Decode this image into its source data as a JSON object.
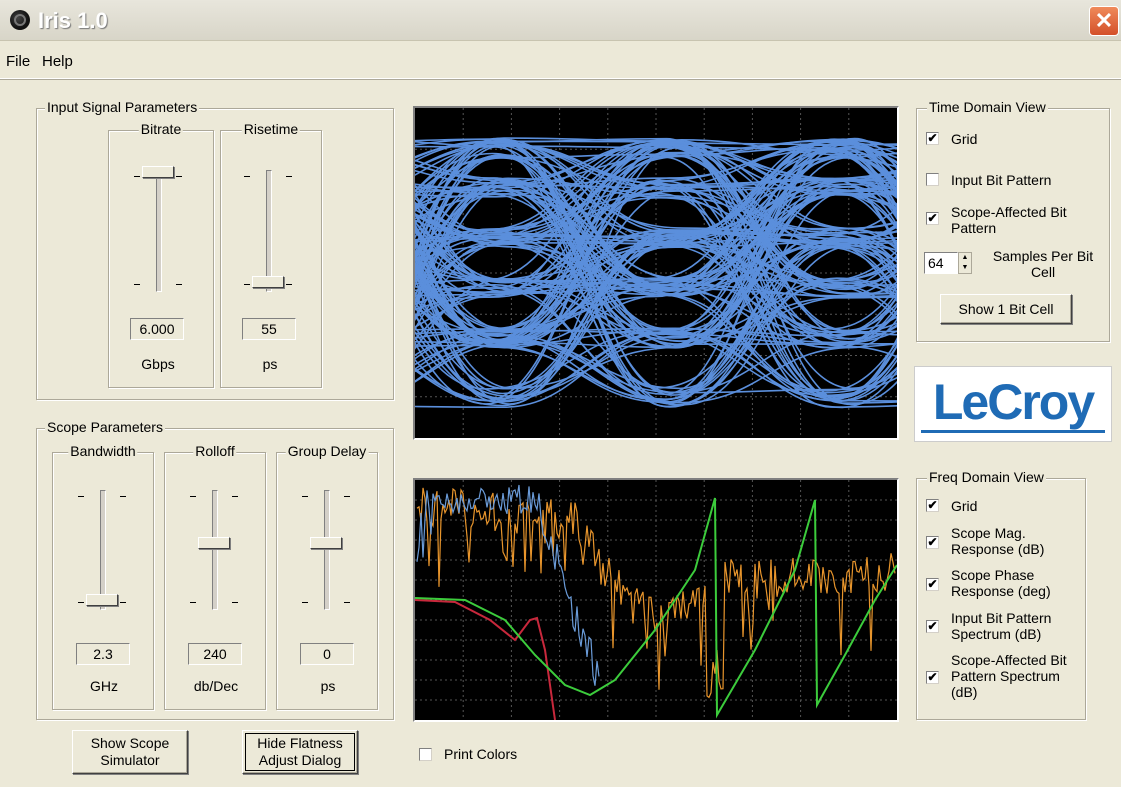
{
  "window": {
    "title": "Iris 1.0",
    "close_glyph": "✕"
  },
  "menu": [
    "File",
    "Help"
  ],
  "input_signal": {
    "title": "Input Signal Parameters",
    "bitrate": {
      "label": "Bitrate",
      "value": "6.000",
      "unit": "Gbps",
      "level": 0.98
    },
    "risetime": {
      "label": "Risetime",
      "value": "55",
      "unit": "ps",
      "level": 0.07
    }
  },
  "scope_params": {
    "title": "Scope Parameters",
    "bandwidth": {
      "label": "Bandwidth",
      "value": "2.3",
      "unit": "GHz",
      "level": 0.07
    },
    "rolloff": {
      "label": "Rolloff",
      "value": "240",
      "unit": "db/Dec",
      "level": 0.55
    },
    "group_delay": {
      "label": "Group Delay",
      "value": "0",
      "unit": "ps",
      "level": 0.55
    }
  },
  "buttons": {
    "show_scope_simulator": "Show Scope Simulator",
    "hide_flatness": "Hide Flatness Adjust Dialog",
    "show_1_bit_cell": "Show 1 Bit Cell"
  },
  "print_colors": {
    "label": "Print Colors",
    "checked": false
  },
  "time_domain": {
    "title": "Time Domain View",
    "grid": {
      "label": "Grid",
      "checked": true
    },
    "input_bit_pattern": {
      "label": "Input Bit Pattern",
      "checked": false
    },
    "scope_affected": {
      "label": "Scope-Affected Bit Pattern",
      "checked": true
    },
    "samples": {
      "value": "64",
      "label": "Samples Per Bit Cell"
    }
  },
  "freq_domain": {
    "title": "Freq Domain View",
    "grid": {
      "label": "Grid",
      "checked": true
    },
    "scope_mag": {
      "label": "Scope Mag. Response (dB)",
      "checked": true
    },
    "scope_phase": {
      "label": "Scope Phase Response (deg)",
      "checked": true
    },
    "input_spectrum": {
      "label": "Input Bit Pattern Spectrum (dB)",
      "checked": true
    },
    "scope_affected_spectrum": {
      "label": "Scope-Affected Bit Pattern Spectrum (dB)",
      "checked": true
    }
  },
  "logo": {
    "text": "LeCroy"
  },
  "colors": {
    "eye": "#5b8fdc",
    "blue_trace": "#6a9bd8",
    "orange_trace": "#e8952c",
    "green_trace": "#3ccc3c",
    "red_trace": "#c8283c",
    "grid": "#555555"
  },
  "check_glyph": "✔"
}
